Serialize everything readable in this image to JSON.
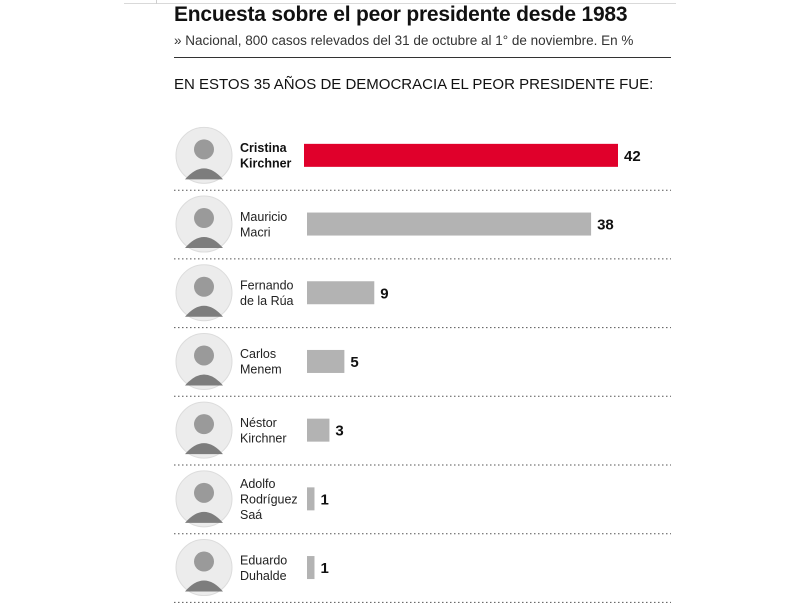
{
  "header": {
    "title": "Encuesta sobre el peor presidente desde 1983",
    "subtitle": "» Nacional, 800 casos relevados del 31 de octubre al 1° de noviembre. En %",
    "question": "EN ESTOS 35 AÑOS DE DEMOCRACIA EL PEOR PRESIDENTE FUE:"
  },
  "chart_data": {
    "type": "bar",
    "orientation": "horizontal",
    "unit": "%",
    "categories": [
      "Cristina Kirchner",
      "Mauricio Macri",
      "Fernando de la Rúa",
      "Carlos Menem",
      "Néstor Kirchner",
      "Adolfo Rodríguez Saá",
      "Eduardo Duhalde"
    ],
    "label_lines": [
      [
        "Cristina",
        "Kirchner"
      ],
      [
        "Mauricio",
        "Macri"
      ],
      [
        "Fernando",
        "de la Rúa"
      ],
      [
        "Carlos",
        "Menem"
      ],
      [
        "Néstor",
        "Kirchner"
      ],
      [
        "Adolfo",
        "Rodríguez",
        "Saá"
      ],
      [
        "Eduardo",
        "Duhalde"
      ]
    ],
    "values": [
      42,
      38,
      9,
      5,
      3,
      1,
      1
    ],
    "highlight_index": 0,
    "xlim": [
      0,
      42
    ],
    "colors": {
      "highlight": "#e0002b",
      "default": "#b3b3b3"
    },
    "portraits": [
      "portrait-icon",
      "portrait-icon",
      "portrait-icon",
      "portrait-icon",
      "portrait-icon",
      "portrait-icon",
      "portrait-icon"
    ],
    "grid": false,
    "legend": "none"
  }
}
